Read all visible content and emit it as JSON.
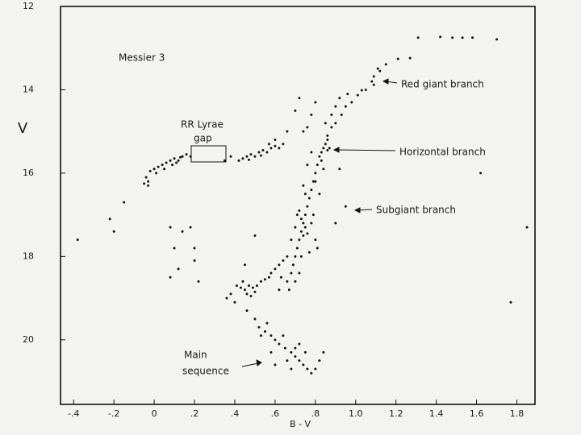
{
  "chart_data": {
    "type": "scatter",
    "y_label": "V",
    "x_label": "B - V",
    "annotations": [
      "Messier 3",
      "RR Lyrae",
      "gap",
      "Red giant branch",
      "Horizontal branch",
      "Subgiant branch",
      "Main",
      "sequence"
    ],
    "color": "#141414",
    "xlim": [
      -0.465,
      1.89
    ],
    "ylim": [
      21.55,
      12
    ],
    "xticks": [
      {
        "value": -0.4,
        "label": "-.4"
      },
      {
        "value": -0.2,
        "label": "-.2"
      },
      0,
      {
        "value": 0.2,
        "label": ".2"
      },
      {
        "value": 0.4,
        "label": ".4"
      },
      {
        "value": 0.6,
        "label": ".6"
      },
      {
        "value": 0.8,
        "label": ".8"
      },
      {
        "value": 1.0,
        "label": "1.0"
      },
      {
        "value": 1.2,
        "label": "1.2"
      },
      {
        "value": 1.4,
        "label": "1.4"
      },
      {
        "value": 1.6,
        "label": "1.6"
      },
      {
        "value": 1.8,
        "label": "1.8"
      }
    ],
    "yticks": [
      12,
      14,
      16,
      18,
      20
    ],
    "x": [
      1.31,
      1.42,
      1.48,
      1.53,
      1.58,
      1.7,
      1.27,
      1.21,
      1.15,
      1.11,
      1.09,
      1.09,
      1.03,
      1.01,
      1.08,
      1.12,
      1.05,
      0.98,
      0.95,
      0.93,
      0.9,
      0.88,
      0.86,
      0.85,
      0.84,
      0.83,
      0.86,
      0.87,
      0.82,
      0.81,
      0.8,
      0.79,
      0.78,
      0.77,
      0.76,
      0.75,
      0.74,
      0.73,
      0.72,
      0.71,
      0.7,
      0.69,
      0.68,
      0.66,
      -0.04,
      -0.03,
      -0.02,
      0.0,
      0.02,
      0.04,
      0.06,
      0.08,
      0.1,
      0.12,
      0.14,
      0.16,
      0.18,
      0.05,
      0.09,
      -0.05,
      -0.03,
      0.11,
      0.13,
      0.01,
      0.42,
      0.44,
      0.46,
      0.48,
      0.5,
      0.52,
      0.54,
      0.56,
      0.58,
      0.6,
      0.62,
      0.38,
      0.35,
      0.47,
      0.53,
      0.57,
      -0.38,
      -0.22,
      -0.2,
      -0.15,
      0.08,
      0.14,
      0.1,
      0.18,
      0.2,
      0.12,
      0.2,
      0.22,
      0.08,
      0.41,
      0.43,
      0.45,
      0.47,
      0.49,
      0.51,
      0.53,
      0.55,
      0.57,
      0.46,
      0.44,
      0.5,
      0.58,
      0.6,
      0.62,
      0.64,
      0.66,
      0.38,
      0.36,
      0.4,
      0.48,
      0.46,
      0.5,
      0.52,
      0.55,
      0.58,
      0.6,
      0.62,
      0.65,
      0.68,
      0.7,
      0.72,
      0.74,
      0.76,
      0.78,
      0.8,
      0.66,
      0.7,
      0.64,
      0.58,
      0.72,
      0.82,
      0.75,
      0.6,
      0.68,
      0.84,
      0.56,
      0.53,
      1.77,
      1.85,
      1.62,
      0.9,
      0.95,
      0.92,
      0.5,
      0.45,
      0.6,
      0.64,
      0.66,
      0.9,
      0.92,
      0.88,
      0.85,
      0.8,
      0.78,
      0.76,
      0.74,
      0.96,
      0.72,
      0.7,
      0.72,
      0.73,
      0.75,
      0.74,
      0.76,
      0.71,
      0.78,
      0.8,
      0.7,
      0.68,
      0.77,
      0.73,
      0.75,
      0.8,
      0.82,
      0.84,
      0.86,
      0.83,
      0.78,
      0.76,
      0.74,
      0.79,
      0.81,
      0.67,
      0.7,
      0.72,
      0.63,
      0.62
    ],
    "values": [
      12.75,
      12.73,
      12.75,
      12.75,
      12.75,
      12.79,
      13.24,
      13.26,
      13.39,
      13.49,
      13.68,
      13.88,
      14.01,
      14.13,
      13.8,
      13.55,
      14.0,
      14.3,
      14.4,
      14.6,
      14.8,
      14.9,
      15.1,
      15.3,
      15.4,
      15.5,
      15.45,
      15.4,
      15.6,
      15.8,
      16.0,
      16.2,
      16.4,
      16.6,
      16.8,
      17.0,
      17.2,
      17.4,
      17.6,
      17.8,
      18.0,
      18.2,
      18.4,
      18.6,
      16.1,
      16.2,
      15.95,
      15.9,
      15.85,
      15.8,
      15.75,
      15.7,
      15.65,
      15.7,
      15.6,
      15.55,
      15.6,
      15.9,
      15.8,
      16.25,
      16.3,
      15.75,
      15.62,
      16.0,
      15.7,
      15.65,
      15.6,
      15.55,
      15.6,
      15.5,
      15.45,
      15.5,
      15.4,
      15.35,
      15.4,
      15.6,
      15.7,
      15.68,
      15.58,
      15.3,
      17.6,
      17.1,
      17.4,
      16.7,
      17.3,
      17.4,
      17.8,
      17.3,
      17.8,
      18.3,
      18.1,
      18.6,
      18.5,
      18.7,
      18.75,
      18.8,
      18.7,
      18.75,
      18.7,
      18.6,
      18.55,
      18.5,
      18.9,
      18.6,
      18.85,
      18.4,
      18.3,
      18.2,
      18.1,
      18.0,
      18.9,
      19.0,
      19.1,
      18.95,
      19.3,
      19.5,
      19.7,
      19.8,
      19.9,
      20.0,
      20.1,
      20.2,
      20.3,
      20.4,
      20.5,
      20.6,
      20.7,
      20.8,
      20.7,
      20.5,
      20.2,
      19.9,
      20.3,
      20.1,
      20.5,
      20.3,
      20.6,
      20.7,
      20.3,
      19.6,
      19.9,
      19.1,
      17.3,
      16.0,
      17.2,
      16.8,
      15.9,
      17.5,
      18.2,
      15.2,
      15.3,
      15.0,
      14.4,
      14.2,
      14.6,
      14.8,
      14.3,
      14.6,
      14.9,
      15.0,
      14.1,
      14.2,
      14.5,
      16.9,
      17.1,
      17.3,
      17.5,
      17.45,
      17.0,
      17.2,
      17.6,
      17.3,
      17.6,
      17.9,
      18.0,
      16.5,
      16.2,
      16.5,
      15.9,
      15.2,
      15.7,
      15.5,
      15.8,
      16.3,
      17.0,
      17.8,
      18.8,
      18.6,
      18.4,
      18.5,
      18.8
    ]
  }
}
